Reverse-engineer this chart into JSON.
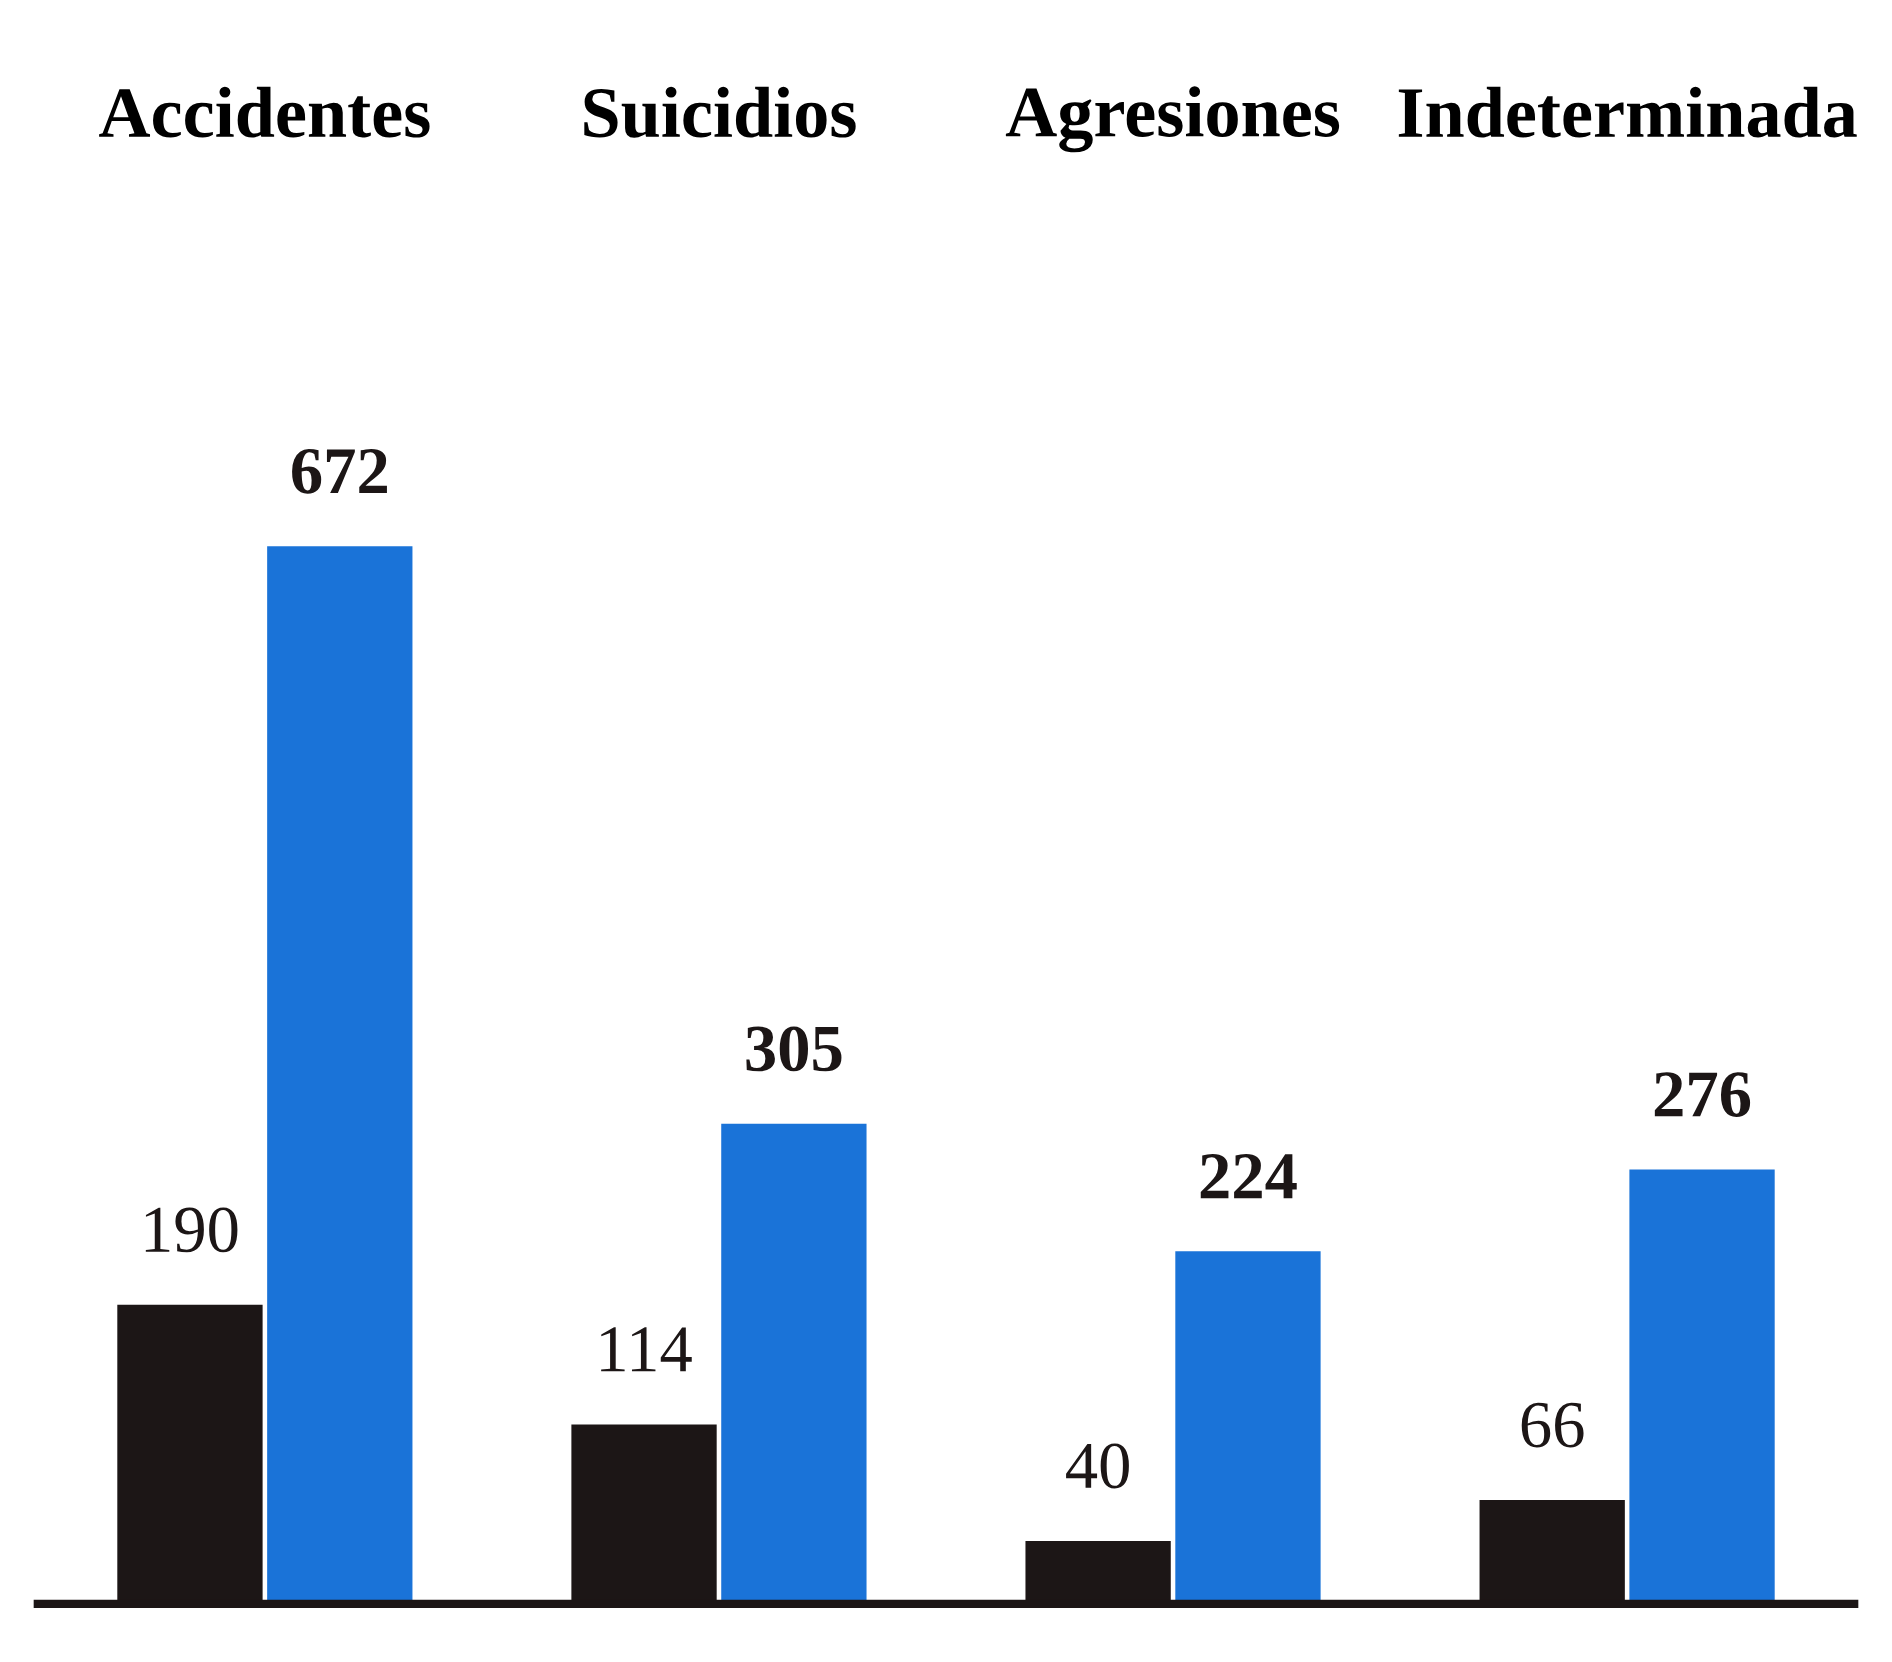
{
  "chart_data": {
    "type": "bar",
    "categories": [
      "Accidentes",
      "Suicidios",
      "Agresiones",
      "Indeterminada"
    ],
    "series": [
      {
        "color": "#1c1616",
        "values": [
          190,
          114,
          40,
          66
        ]
      },
      {
        "color": "#1a73d8",
        "values": [
          672,
          305,
          224,
          276
        ]
      }
    ],
    "data_labels": true,
    "tick_labels": "x",
    "grid": false,
    "legend": false
  }
}
